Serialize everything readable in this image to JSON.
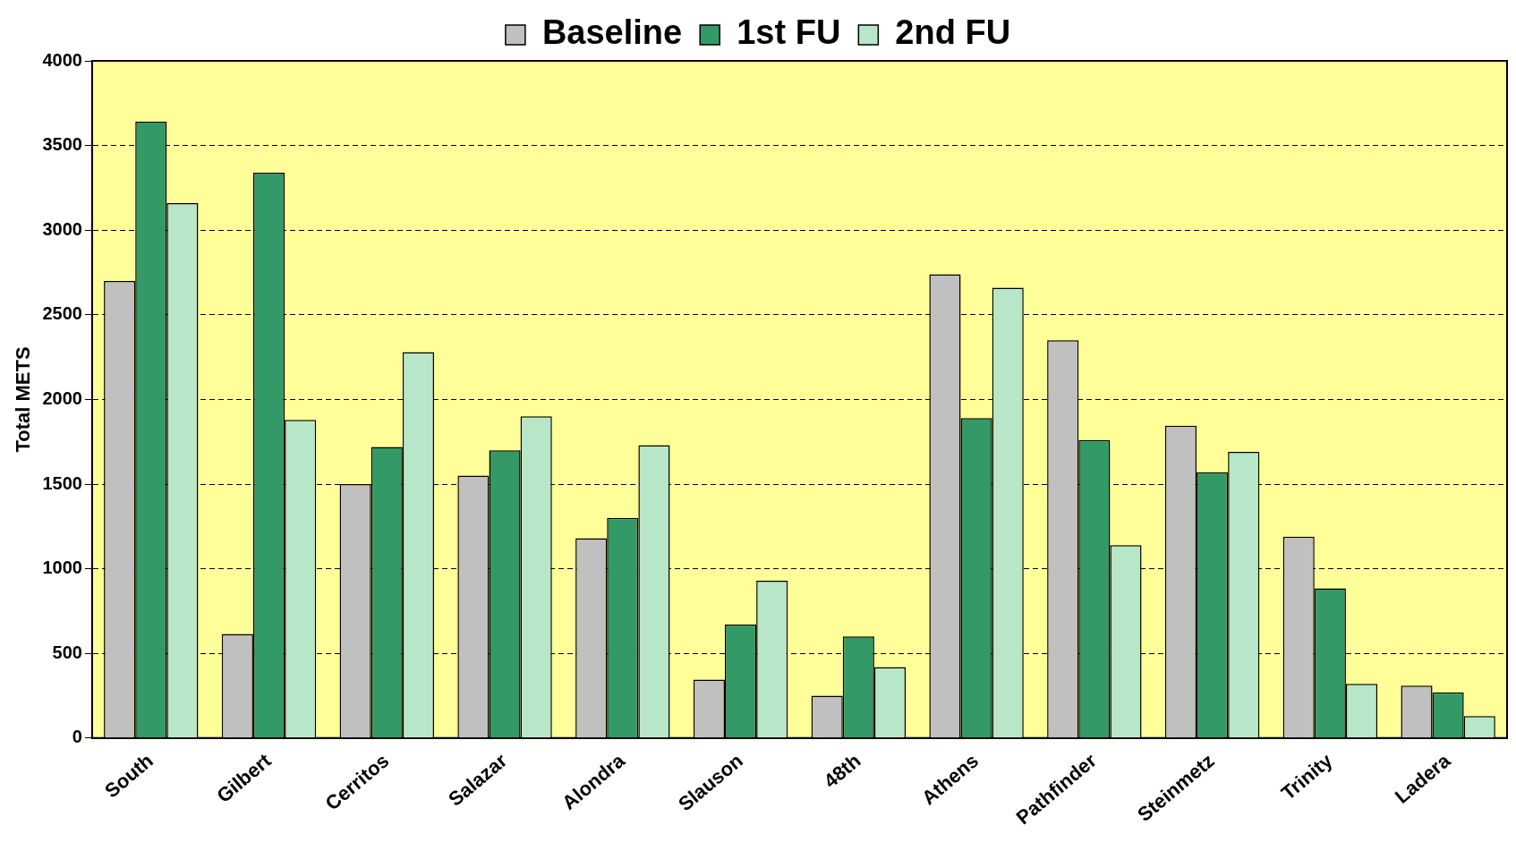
{
  "chart_data": {
    "type": "bar",
    "ylabel": "Total METS",
    "categories": [
      "South",
      "Gilbert",
      "Cerritos",
      "Salazar",
      "Alondra",
      "Slauson",
      "48th",
      "Athens",
      "Pathfinder",
      "Steinmetz",
      "Trinity",
      "Ladera"
    ],
    "series": [
      {
        "name": "Baseline",
        "color": "#c0c0c0",
        "values": [
          2700,
          615,
          1500,
          1550,
          1180,
          345,
          250,
          2740,
          2350,
          1845,
          1190,
          310
        ]
      },
      {
        "name": "1st FU",
        "color": "#339966",
        "values": [
          3640,
          3340,
          1720,
          1700,
          1300,
          670,
          600,
          1890,
          1760,
          1570,
          885,
          270
        ]
      },
      {
        "name": "2nd FU",
        "color": "#b8e6c8",
        "values": [
          3160,
          1880,
          2280,
          1900,
          1730,
          930,
          420,
          2660,
          1140,
          1690,
          320,
          130
        ]
      }
    ],
    "ylim": [
      0,
      4000
    ],
    "yticks": [
      0,
      500,
      1000,
      1500,
      2000,
      2500,
      3000,
      3500,
      4000
    ],
    "grid": "y",
    "legend": "top"
  }
}
